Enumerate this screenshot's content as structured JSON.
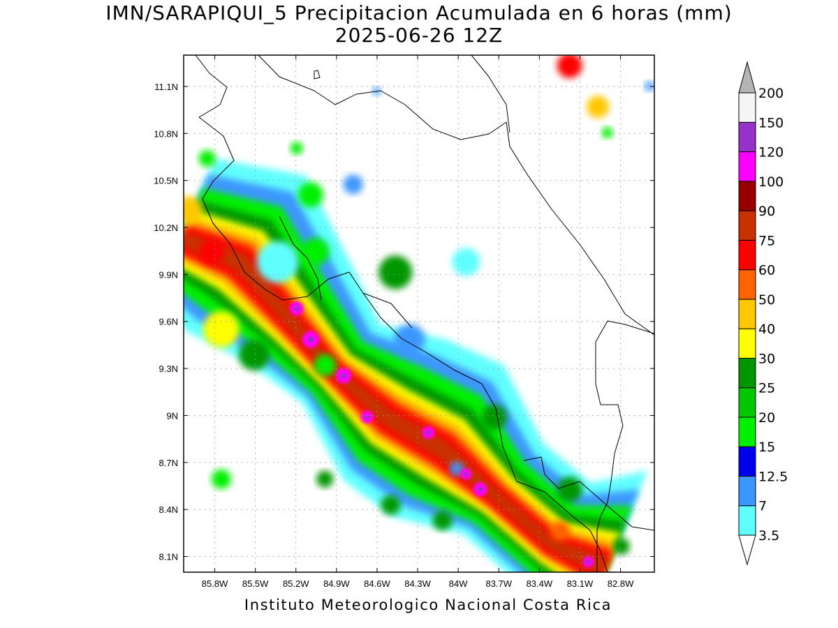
{
  "title": {
    "line1": "IMN/SARAPIQUI_5 Precipitacion Acumulada en 6 horas (mm)",
    "line2": "2025-06-26 12Z"
  },
  "footer": "Instituto Meteorologico Nacional Costa Rica",
  "map": {
    "lon_range": [
      -86.03,
      -82.55
    ],
    "lat_range": [
      8.0,
      11.3
    ],
    "lon_ticks": [
      {
        "value": -85.8,
        "label": "85.8W"
      },
      {
        "value": -85.5,
        "label": "85.5W"
      },
      {
        "value": -85.2,
        "label": "85.2W"
      },
      {
        "value": -84.9,
        "label": "84.9W"
      },
      {
        "value": -84.6,
        "label": "84.6W"
      },
      {
        "value": -84.3,
        "label": "84.3W"
      },
      {
        "value": -84.0,
        "label": "84W"
      },
      {
        "value": -83.7,
        "label": "83.7W"
      },
      {
        "value": -83.4,
        "label": "83.4W"
      },
      {
        "value": -83.1,
        "label": "83.1W"
      },
      {
        "value": -82.8,
        "label": "82.8W"
      }
    ],
    "lat_ticks": [
      {
        "value": 11.1,
        "label": "11.1N"
      },
      {
        "value": 10.8,
        "label": "10.8N"
      },
      {
        "value": 10.5,
        "label": "10.5N"
      },
      {
        "value": 10.2,
        "label": "10.2N"
      },
      {
        "value": 9.9,
        "label": "9.9N"
      },
      {
        "value": 9.6,
        "label": "9.6N"
      },
      {
        "value": 9.3,
        "label": "9.3N"
      },
      {
        "value": 9.0,
        "label": "9N"
      },
      {
        "value": 8.7,
        "label": "8.7N"
      },
      {
        "value": 8.4,
        "label": "8.4N"
      },
      {
        "value": 8.1,
        "label": "8.1N"
      }
    ],
    "grid": "dotted",
    "precip_band_axis": [
      [
        -86.03,
        10.15
      ],
      [
        -85.6,
        10.0
      ],
      [
        -85.2,
        9.6
      ],
      [
        -84.9,
        9.3
      ],
      [
        -84.5,
        9.0
      ],
      [
        -84.1,
        8.8
      ],
      [
        -83.7,
        8.5
      ],
      [
        -83.3,
        8.2
      ],
      [
        -82.9,
        8.05
      ]
    ]
  },
  "legend": {
    "levels": [
      "3.5",
      "7",
      "12.5",
      "15",
      "20",
      "25",
      "30",
      "40",
      "50",
      "60",
      "75",
      "90",
      "100",
      "120",
      "150",
      "200"
    ],
    "colors": [
      "#ffffff",
      "#60ffff",
      "#3c96ff",
      "#0000f0",
      "#00f000",
      "#00c800",
      "#009600",
      "#ffff00",
      "#ffc800",
      "#ff6400",
      "#ff0000",
      "#c83200",
      "#960000",
      "#ff00ff",
      "#9632c8",
      "#f5f5f5",
      "#b4b4b4"
    ]
  }
}
